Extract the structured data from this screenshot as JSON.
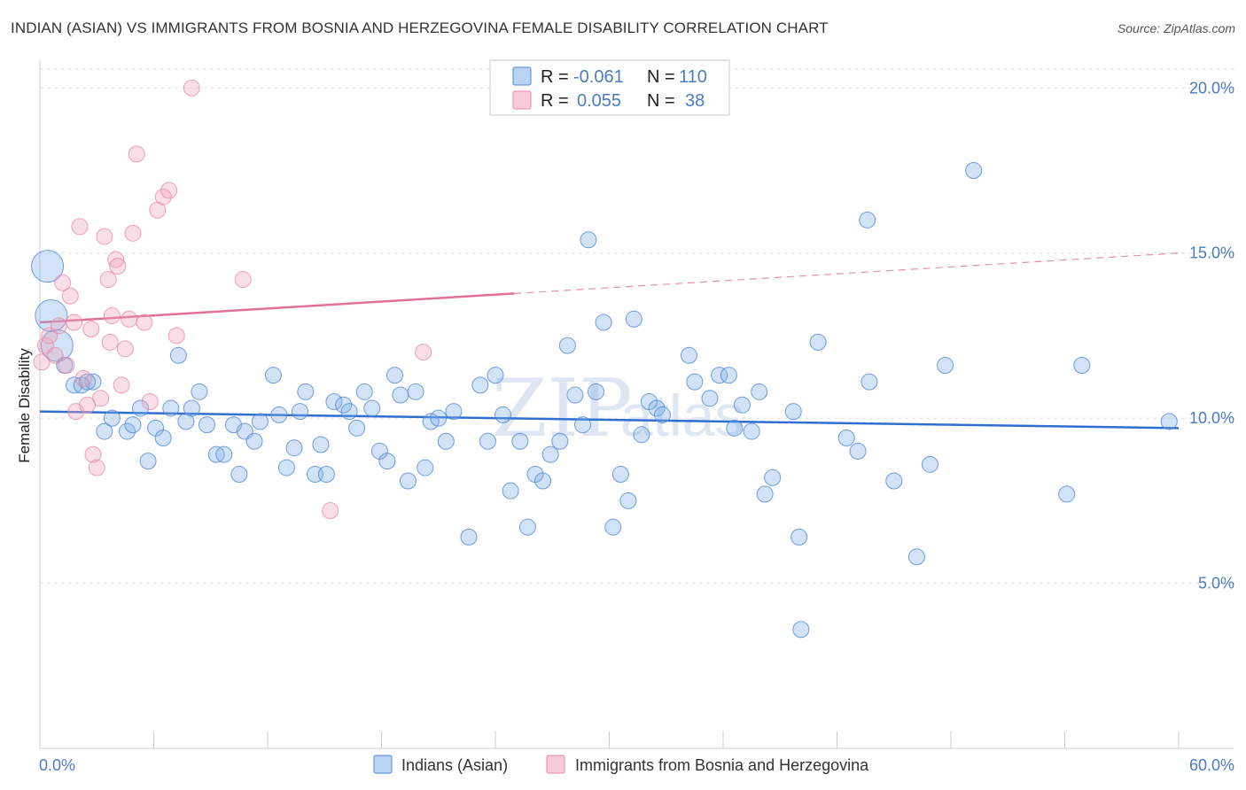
{
  "title": "INDIAN (ASIAN) VS IMMIGRANTS FROM BOSNIA AND HERZEGOVINA FEMALE DISABILITY CORRELATION CHART",
  "source": "Source: ZipAtlas.com",
  "watermark": {
    "zip": "ZIP",
    "atlas": "atlas"
  },
  "legend": {
    "r_label": "R =",
    "n_label": "N =",
    "rows": [
      {
        "r": "-0.061",
        "n": "110",
        "color": "#7fb0e8"
      },
      {
        "r": "0.055",
        "n": "38",
        "color": "#f2a1bb"
      }
    ]
  },
  "chart_data": {
    "type": "scatter",
    "xlabel": "",
    "ylabel": "Female Disability",
    "xlim": [
      0,
      60
    ],
    "ylim": [
      0,
      21
    ],
    "x_tick_labels": [
      "0.0%",
      "60.0%"
    ],
    "y_ticks": [
      {
        "value": 5,
        "label": "5.0%"
      },
      {
        "value": 10,
        "label": "10.0%"
      },
      {
        "value": 15,
        "label": "15.0%"
      },
      {
        "value": 20,
        "label": "20.0%"
      }
    ],
    "grid": "horizontal dashed",
    "legend_position": "bottom",
    "series": [
      {
        "name": "Indians (Asian)",
        "color": "#7fb0e8",
        "trend_color": "#2f6fd0",
        "trend": {
          "x": [
            0,
            60
          ],
          "y": [
            10.2,
            9.7
          ]
        },
        "points": [
          [
            0.4,
            14.6
          ],
          [
            0.6,
            13.1
          ],
          [
            0.9,
            12.2
          ],
          [
            1.3,
            11.6
          ],
          [
            1.8,
            11.0
          ],
          [
            2.2,
            11.0
          ],
          [
            2.8,
            11.1
          ],
          [
            3.4,
            9.6
          ],
          [
            3.8,
            10.0
          ],
          [
            4.6,
            9.6
          ],
          [
            4.9,
            9.8
          ],
          [
            5.3,
            10.3
          ],
          [
            5.7,
            8.7
          ],
          [
            6.1,
            9.7
          ],
          [
            6.5,
            9.4
          ],
          [
            6.9,
            10.3
          ],
          [
            7.3,
            11.9
          ],
          [
            7.7,
            9.9
          ],
          [
            8.0,
            10.3
          ],
          [
            8.4,
            10.8
          ],
          [
            8.8,
            9.8
          ],
          [
            9.3,
            8.9
          ],
          [
            9.7,
            8.9
          ],
          [
            10.2,
            9.8
          ],
          [
            10.5,
            8.3
          ],
          [
            10.8,
            9.6
          ],
          [
            11.3,
            9.3
          ],
          [
            11.6,
            9.9
          ],
          [
            12.3,
            11.3
          ],
          [
            12.6,
            10.1
          ],
          [
            13.0,
            8.5
          ],
          [
            13.4,
            9.1
          ],
          [
            13.7,
            10.2
          ],
          [
            14.0,
            10.8
          ],
          [
            14.5,
            8.3
          ],
          [
            14.8,
            9.2
          ],
          [
            15.1,
            8.3
          ],
          [
            15.5,
            10.5
          ],
          [
            16.0,
            10.4
          ],
          [
            16.3,
            10.2
          ],
          [
            16.7,
            9.7
          ],
          [
            17.1,
            10.8
          ],
          [
            17.5,
            10.3
          ],
          [
            17.9,
            9.0
          ],
          [
            18.3,
            8.7
          ],
          [
            18.7,
            11.3
          ],
          [
            19.0,
            10.7
          ],
          [
            19.4,
            8.1
          ],
          [
            19.8,
            10.8
          ],
          [
            20.3,
            8.5
          ],
          [
            20.6,
            9.9
          ],
          [
            21.0,
            10.0
          ],
          [
            21.4,
            9.3
          ],
          [
            21.8,
            10.2
          ],
          [
            22.6,
            6.4
          ],
          [
            23.2,
            11.0
          ],
          [
            23.6,
            9.3
          ],
          [
            24.0,
            11.3
          ],
          [
            24.4,
            10.1
          ],
          [
            24.8,
            7.8
          ],
          [
            25.3,
            9.3
          ],
          [
            25.7,
            6.7
          ],
          [
            26.1,
            8.3
          ],
          [
            26.5,
            8.1
          ],
          [
            26.9,
            8.9
          ],
          [
            27.4,
            9.3
          ],
          [
            27.8,
            12.2
          ],
          [
            28.2,
            10.7
          ],
          [
            28.6,
            9.8
          ],
          [
            28.9,
            15.4
          ],
          [
            29.3,
            10.8
          ],
          [
            29.7,
            12.9
          ],
          [
            30.2,
            6.7
          ],
          [
            30.6,
            8.3
          ],
          [
            31.0,
            7.5
          ],
          [
            31.3,
            13.0
          ],
          [
            31.7,
            9.5
          ],
          [
            32.1,
            10.5
          ],
          [
            32.5,
            10.3
          ],
          [
            32.8,
            10.1
          ],
          [
            34.2,
            11.9
          ],
          [
            34.5,
            11.1
          ],
          [
            35.3,
            10.6
          ],
          [
            35.8,
            11.3
          ],
          [
            36.3,
            11.3
          ],
          [
            36.6,
            9.7
          ],
          [
            37.0,
            10.4
          ],
          [
            37.5,
            9.6
          ],
          [
            37.9,
            10.8
          ],
          [
            38.2,
            7.7
          ],
          [
            38.6,
            8.2
          ],
          [
            39.7,
            10.2
          ],
          [
            40.0,
            6.4
          ],
          [
            40.1,
            3.6
          ],
          [
            41.0,
            12.3
          ],
          [
            42.5,
            9.4
          ],
          [
            43.1,
            9.0
          ],
          [
            43.6,
            16.0
          ],
          [
            43.7,
            11.1
          ],
          [
            45.0,
            8.1
          ],
          [
            46.2,
            5.8
          ],
          [
            46.9,
            8.6
          ],
          [
            47.7,
            11.6
          ],
          [
            49.2,
            17.5
          ],
          [
            54.1,
            7.7
          ],
          [
            54.9,
            11.6
          ],
          [
            59.5,
            9.9
          ],
          [
            2.5,
            11.1
          ]
        ],
        "big_points": [
          [
            0.4,
            14.6
          ],
          [
            0.6,
            13.1
          ],
          [
            0.9,
            12.2
          ]
        ]
      },
      {
        "name": "Immigrants from Bosnia and Herzegovina",
        "color": "#f2a1bb",
        "trend_color": "#e0709a",
        "trend": {
          "x": [
            0,
            60
          ],
          "y": [
            12.9,
            15.0
          ]
        },
        "trend_solid_until": 25,
        "points": [
          [
            0.1,
            11.7
          ],
          [
            0.3,
            12.2
          ],
          [
            0.5,
            12.5
          ],
          [
            0.8,
            11.9
          ],
          [
            1.0,
            12.8
          ],
          [
            1.2,
            14.1
          ],
          [
            1.4,
            11.6
          ],
          [
            1.6,
            13.7
          ],
          [
            1.8,
            12.9
          ],
          [
            1.9,
            10.2
          ],
          [
            2.1,
            15.8
          ],
          [
            2.3,
            11.2
          ],
          [
            2.5,
            10.4
          ],
          [
            2.7,
            12.7
          ],
          [
            2.8,
            8.9
          ],
          [
            3.0,
            8.5
          ],
          [
            3.2,
            10.6
          ],
          [
            3.4,
            15.5
          ],
          [
            3.6,
            14.2
          ],
          [
            3.7,
            12.3
          ],
          [
            3.8,
            13.1
          ],
          [
            4.0,
            14.8
          ],
          [
            4.1,
            14.6
          ],
          [
            4.3,
            11.0
          ],
          [
            4.5,
            12.1
          ],
          [
            4.7,
            13.0
          ],
          [
            4.9,
            15.6
          ],
          [
            5.1,
            18.0
          ],
          [
            5.5,
            12.9
          ],
          [
            5.8,
            10.5
          ],
          [
            6.2,
            16.3
          ],
          [
            6.5,
            16.7
          ],
          [
            6.8,
            16.9
          ],
          [
            7.2,
            12.5
          ],
          [
            8.0,
            20.0
          ],
          [
            10.7,
            14.2
          ],
          [
            15.3,
            7.2
          ],
          [
            20.2,
            12.0
          ]
        ]
      }
    ]
  }
}
